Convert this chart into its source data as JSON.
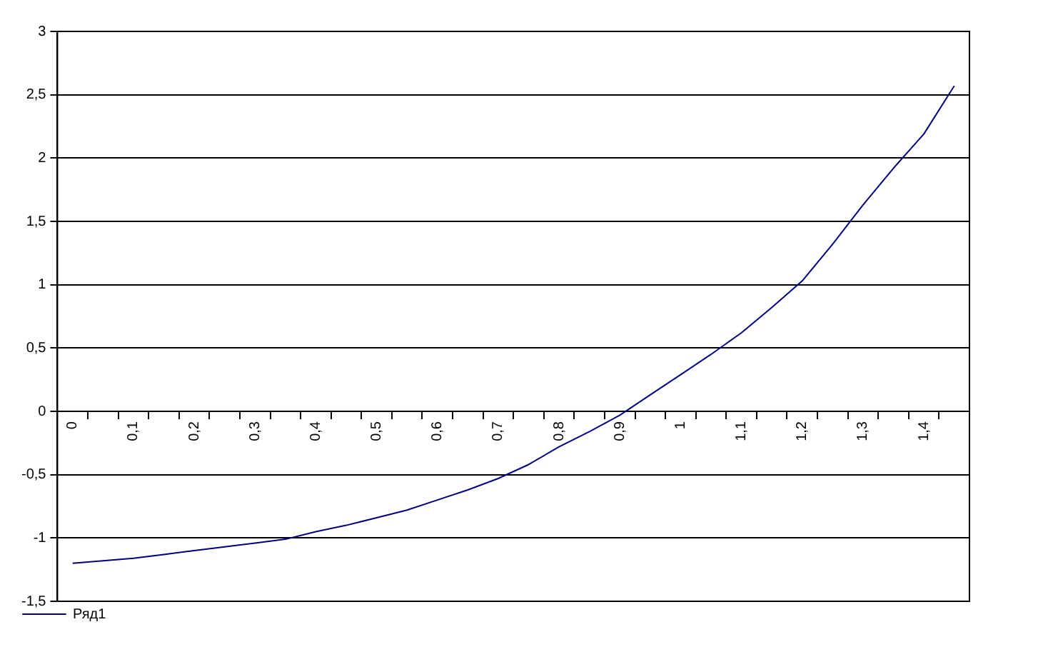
{
  "chart_data": {
    "type": "line",
    "categories": [
      "0",
      null,
      "0,1",
      null,
      "0,2",
      null,
      "0,3",
      null,
      "0,4",
      null,
      "0,5",
      null,
      "0,6",
      null,
      "0,7",
      null,
      "0,8",
      null,
      "0,9",
      null,
      "1",
      null,
      "1,1",
      null,
      "1,2",
      null,
      "1,3",
      null,
      "1,4",
      null
    ],
    "series": [
      {
        "name": "Ряд1",
        "color": "#000080",
        "values": [
          -1.2,
          -1.18,
          -1.16,
          -1.13,
          -1.1,
          -1.07,
          -1.04,
          -1.01,
          -0.95,
          -0.9,
          -0.84,
          -0.78,
          -0.7,
          -0.62,
          -0.53,
          -0.42,
          -0.28,
          -0.16,
          -0.03,
          0.13,
          0.29,
          0.45,
          0.62,
          0.82,
          1.03,
          1.32,
          1.63,
          1.92,
          2.19,
          2.57
        ]
      }
    ],
    "ylim": [
      -1.5,
      3
    ],
    "yticks": [
      {
        "value": -1.5,
        "label": "-1,5"
      },
      -1,
      {
        "value": -0.5,
        "label": "-0,5"
      },
      0,
      {
        "value": 0.5,
        "label": "0,5"
      },
      1,
      {
        "value": 1.5,
        "label": "1,5"
      },
      2,
      {
        "value": 2.5,
        "label": "2,5"
      },
      3
    ],
    "grid": "y",
    "legend": "bottom left"
  }
}
